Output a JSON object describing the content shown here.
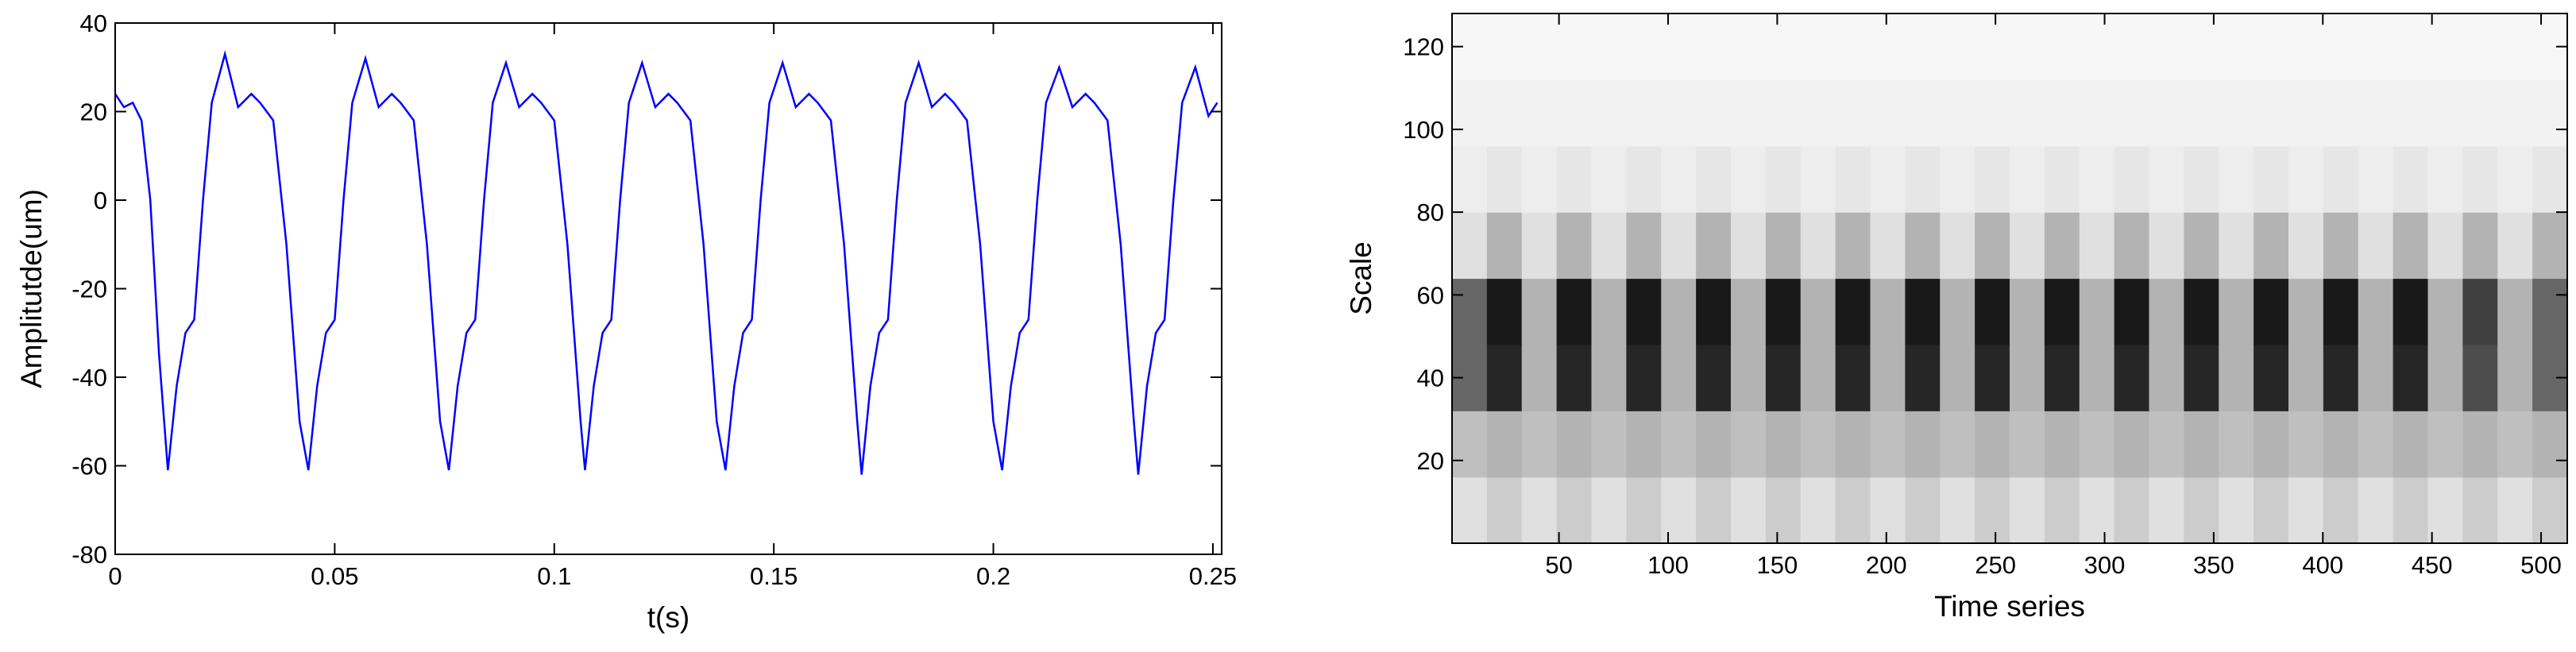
{
  "chart_data": [
    {
      "type": "line",
      "xlabel": "t(s)",
      "ylabel": "Amplitutde(um)",
      "color": "#0000ff",
      "xlim": [
        0,
        0.252
      ],
      "ylim": [
        -80,
        40
      ],
      "xticks": [
        0,
        0.05,
        0.1,
        0.15,
        0.2,
        0.25
      ],
      "yticks": [
        -80,
        -60,
        -40,
        -20,
        0,
        20,
        40
      ],
      "x": [
        0,
        0.002,
        0.004,
        0.006,
        0.008,
        0.01,
        0.012,
        0.014,
        0.016,
        0.018,
        0.02,
        0.022,
        0.025,
        0.028,
        0.031,
        0.033,
        0.036,
        0.039,
        0.042,
        0.044,
        0.046,
        0.048,
        0.05,
        0.052,
        0.054,
        0.057,
        0.06,
        0.063,
        0.065,
        0.068,
        0.071,
        0.074,
        0.076,
        0.078,
        0.08,
        0.082,
        0.084,
        0.086,
        0.089,
        0.092,
        0.095,
        0.097,
        0.1,
        0.103,
        0.106,
        0.107,
        0.109,
        0.111,
        0.113,
        0.115,
        0.117,
        0.12,
        0.123,
        0.126,
        0.128,
        0.131,
        0.134,
        0.137,
        0.139,
        0.141,
        0.143,
        0.145,
        0.147,
        0.149,
        0.152,
        0.155,
        0.158,
        0.16,
        0.163,
        0.166,
        0.169,
        0.17,
        0.172,
        0.174,
        0.176,
        0.178,
        0.18,
        0.183,
        0.186,
        0.189,
        0.191,
        0.194,
        0.197,
        0.2,
        0.202,
        0.204,
        0.206,
        0.208,
        0.21,
        0.212,
        0.215,
        0.218,
        0.221,
        0.223,
        0.226,
        0.229,
        0.232,
        0.233,
        0.235,
        0.237,
        0.239,
        0.241,
        0.243,
        0.246,
        0.249,
        0.251
      ],
      "values": [
        24,
        21,
        22,
        18,
        0,
        -35,
        -61,
        -42,
        -30,
        -27,
        0,
        22,
        33,
        21,
        24,
        22,
        18,
        -10,
        -50,
        -61,
        -42,
        -30,
        -27,
        0,
        22,
        32,
        21,
        24,
        22,
        18,
        -10,
        -50,
        -61,
        -42,
        -30,
        -27,
        0,
        22,
        31,
        21,
        24,
        22,
        18,
        -10,
        -50,
        -61,
        -42,
        -30,
        -27,
        0,
        22,
        31,
        21,
        24,
        22,
        18,
        -10,
        -50,
        -61,
        -42,
        -30,
        -27,
        0,
        22,
        31,
        21,
        24,
        22,
        18,
        -10,
        -50,
        -62,
        -42,
        -30,
        -27,
        0,
        22,
        31,
        21,
        24,
        22,
        18,
        -10,
        -50,
        -61,
        -42,
        -30,
        -27,
        0,
        22,
        30,
        21,
        24,
        22,
        18,
        -10,
        -50,
        -62,
        -42,
        -30,
        -27,
        0,
        22,
        30,
        19,
        22
      ]
    },
    {
      "type": "heatmap",
      "xlabel": "Time series",
      "ylabel": "Scale",
      "xlim": [
        1,
        512
      ],
      "ylim": [
        0,
        128
      ],
      "xticks": [
        50,
        100,
        150,
        200,
        250,
        300,
        350,
        400,
        450,
        500
      ],
      "yticks": [
        20,
        40,
        60,
        80,
        100,
        120
      ],
      "z": [
        [
          0.12,
          0.2,
          0.12,
          0.2,
          0.12,
          0.2,
          0.12,
          0.2,
          0.12,
          0.2,
          0.12,
          0.2,
          0.12,
          0.2,
          0.12,
          0.2,
          0.12,
          0.2,
          0.12,
          0.2,
          0.12,
          0.2,
          0.12,
          0.2,
          0.12,
          0.2,
          0.12,
          0.2,
          0.12,
          0.2,
          0.12,
          0.2
        ],
        [
          0.25,
          0.3,
          0.25,
          0.3,
          0.25,
          0.3,
          0.25,
          0.3,
          0.25,
          0.3,
          0.25,
          0.3,
          0.25,
          0.3,
          0.25,
          0.3,
          0.25,
          0.3,
          0.25,
          0.3,
          0.25,
          0.3,
          0.25,
          0.3,
          0.25,
          0.3,
          0.25,
          0.3,
          0.25,
          0.3,
          0.25,
          0.3
        ],
        [
          0.6,
          0.85,
          0.3,
          0.85,
          0.3,
          0.85,
          0.3,
          0.85,
          0.3,
          0.85,
          0.3,
          0.85,
          0.3,
          0.85,
          0.3,
          0.85,
          0.3,
          0.85,
          0.3,
          0.85,
          0.3,
          0.85,
          0.3,
          0.85,
          0.3,
          0.85,
          0.3,
          0.85,
          0.3,
          0.7,
          0.3,
          0.6
        ],
        [
          0.6,
          0.9,
          0.3,
          0.9,
          0.3,
          0.9,
          0.3,
          0.9,
          0.3,
          0.9,
          0.3,
          0.9,
          0.3,
          0.9,
          0.3,
          0.9,
          0.3,
          0.9,
          0.3,
          0.9,
          0.3,
          0.9,
          0.3,
          0.9,
          0.3,
          0.9,
          0.3,
          0.9,
          0.3,
          0.75,
          0.3,
          0.6
        ],
        [
          0.12,
          0.3,
          0.12,
          0.3,
          0.12,
          0.3,
          0.12,
          0.3,
          0.12,
          0.3,
          0.12,
          0.3,
          0.12,
          0.3,
          0.12,
          0.3,
          0.12,
          0.3,
          0.12,
          0.3,
          0.12,
          0.3,
          0.12,
          0.3,
          0.12,
          0.3,
          0.12,
          0.3,
          0.12,
          0.3,
          0.12,
          0.3
        ],
        [
          0.07,
          0.1,
          0.07,
          0.1,
          0.07,
          0.1,
          0.07,
          0.1,
          0.07,
          0.1,
          0.07,
          0.1,
          0.07,
          0.1,
          0.07,
          0.1,
          0.07,
          0.1,
          0.07,
          0.1,
          0.07,
          0.1,
          0.07,
          0.1,
          0.07,
          0.1,
          0.07,
          0.1,
          0.07,
          0.1,
          0.07,
          0.1
        ],
        [
          0.05,
          0.05,
          0.05,
          0.05,
          0.05,
          0.05,
          0.05,
          0.05,
          0.05,
          0.05,
          0.05,
          0.05,
          0.05,
          0.05,
          0.05,
          0.05,
          0.05,
          0.05,
          0.05,
          0.05,
          0.05,
          0.05,
          0.05,
          0.05,
          0.05,
          0.05,
          0.05,
          0.05,
          0.05,
          0.05,
          0.05,
          0.05
        ],
        [
          0.03,
          0.03,
          0.03,
          0.03,
          0.03,
          0.03,
          0.03,
          0.03,
          0.03,
          0.03,
          0.03,
          0.03,
          0.03,
          0.03,
          0.03,
          0.03,
          0.03,
          0.03,
          0.03,
          0.03,
          0.03,
          0.03,
          0.03,
          0.03,
          0.03,
          0.03,
          0.03,
          0.03,
          0.03,
          0.03,
          0.03,
          0.03
        ]
      ]
    }
  ]
}
